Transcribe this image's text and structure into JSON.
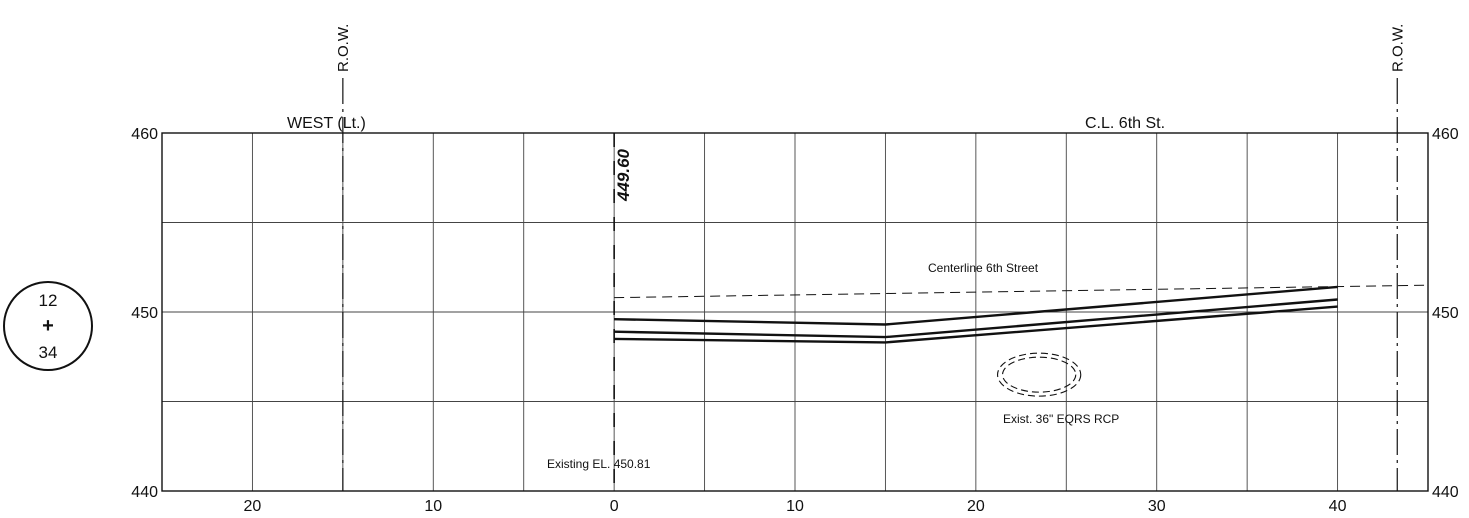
{
  "station": {
    "top": "12",
    "mid": "+",
    "bottom": "34"
  },
  "labels": {
    "row_left": "R.O.W.",
    "row_right": "R.O.W.",
    "west": "WEST (Lt.)",
    "centerline_header": "C.L. 6th St.",
    "elevation_callout": "449.60",
    "centerline_line": "Centerline 6th Street",
    "pipe": "Exist. 36\" EQRS RCP",
    "existing_el": "Existing EL. 450.81"
  },
  "chart_data": {
    "type": "line",
    "title": "",
    "xlabel": "",
    "ylabel": "",
    "x_ticks": [
      {
        "value": -20,
        "label": "20"
      },
      {
        "value": -10,
        "label": "10"
      },
      {
        "value": 0,
        "label": "0"
      },
      {
        "value": 10,
        "label": "10"
      },
      {
        "value": 20,
        "label": "20"
      },
      {
        "value": 30,
        "label": "30"
      },
      {
        "value": 40,
        "label": "40"
      }
    ],
    "y_ticks_left": [
      {
        "value": 440,
        "label": "440"
      },
      {
        "value": 450,
        "label": "450"
      },
      {
        "value": 460,
        "label": "460"
      }
    ],
    "y_ticks_right": [
      {
        "value": 440,
        "label": "440"
      },
      {
        "value": 450,
        "label": "450"
      },
      {
        "value": 460,
        "label": "460"
      }
    ],
    "xlim": [
      -25,
      45
    ],
    "ylim": [
      440,
      460
    ],
    "grid": true,
    "grid_x_step": 5,
    "grid_y_step": 5,
    "row_left_x": -15,
    "row_right_x": 43.3,
    "centerline_x": 0,
    "series": [
      {
        "points": [
          [
            0,
            449.6
          ],
          [
            15,
            449.3
          ],
          [
            40,
            451.4
          ]
        ]
      },
      {
        "points": [
          [
            0,
            448.9
          ],
          [
            15,
            448.6
          ],
          [
            40,
            450.7
          ]
        ]
      },
      {
        "points": [
          [
            0,
            448.5
          ],
          [
            15,
            448.3
          ],
          [
            40,
            450.3
          ]
        ]
      }
    ],
    "existing_ground": [
      [
        0,
        450.8
      ],
      [
        45,
        451.5
      ]
    ],
    "pipe": {
      "center_x": 23.5,
      "center_y": 446.5,
      "rx": 2.3,
      "ry": 1.2
    }
  }
}
